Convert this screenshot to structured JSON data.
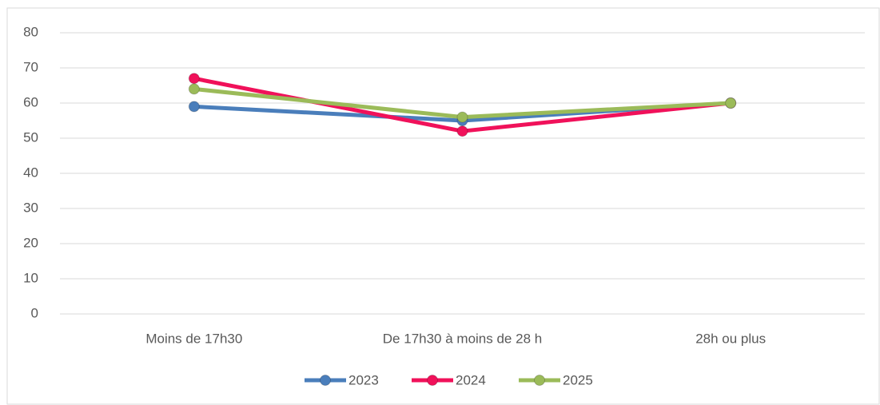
{
  "chart_data": {
    "type": "line",
    "categories": [
      "Moins de 17h30",
      "De 17h30 à moins de 28 h",
      "28h ou plus"
    ],
    "series": [
      {
        "name": "2023",
        "color": "#4a7ebb",
        "values": [
          59,
          55,
          60
        ]
      },
      {
        "name": "2024",
        "color": "#f0115a",
        "values": [
          67,
          52,
          60
        ]
      },
      {
        "name": "2025",
        "color": "#9bbb59",
        "values": [
          64,
          56,
          60
        ]
      }
    ],
    "ylim": [
      0,
      80
    ],
    "yticks": [
      0,
      10,
      20,
      30,
      40,
      50,
      60,
      70,
      80
    ],
    "grid": true,
    "legend": "bottom"
  }
}
